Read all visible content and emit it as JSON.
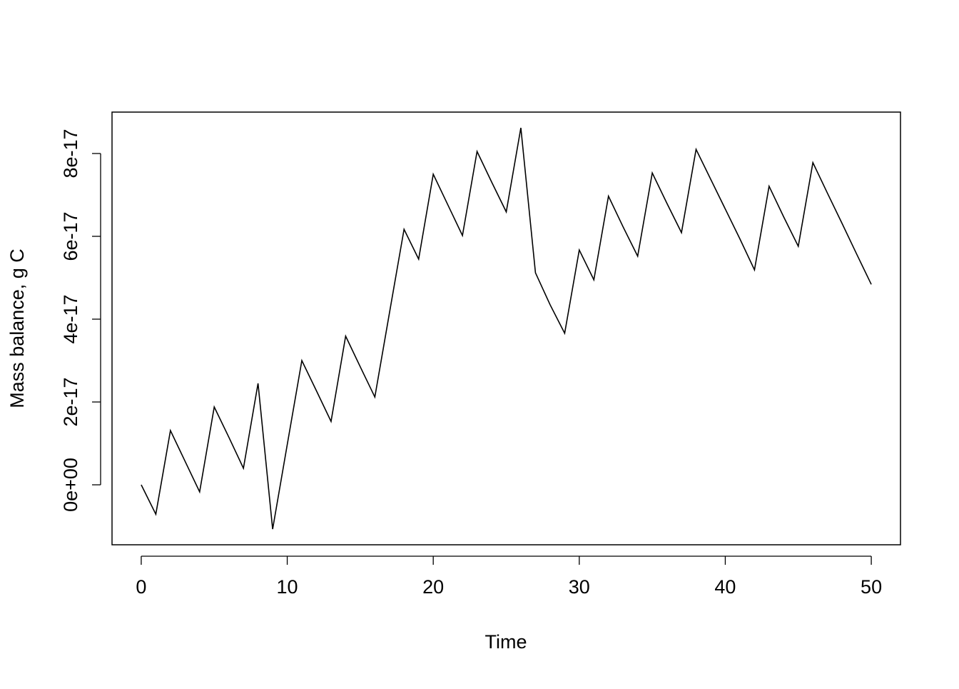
{
  "chart_data": {
    "type": "line",
    "x_label": "Time",
    "y_label": "Mass balance, g C",
    "x": [
      0,
      1,
      2,
      3,
      4,
      5,
      6,
      7,
      8,
      9,
      10,
      11,
      12,
      13,
      14,
      15,
      16,
      17,
      18,
      19,
      20,
      21,
      22,
      23,
      24,
      25,
      26,
      27,
      28,
      29,
      30,
      31,
      32,
      33,
      34,
      35,
      36,
      37,
      38,
      39,
      40,
      41,
      42,
      43,
      44,
      45,
      46,
      47,
      48,
      49,
      50
    ],
    "series": [
      {
        "color": "#000000",
        "values": [
          0,
          -7.1e-18,
          1.31e-17,
          5.7e-18,
          -1.7e-18,
          1.88e-17,
          1.15e-17,
          4e-18,
          2.45e-17,
          -1.07e-17,
          9.7e-18,
          3e-17,
          2.27e-17,
          1.53e-17,
          3.59e-17,
          2.85e-17,
          2.12e-17,
          4.15e-17,
          6.17e-17,
          5.45e-17,
          7.5e-17,
          6.76e-17,
          6.02e-17,
          8.05e-17,
          7.31e-17,
          6.59e-17,
          8.62e-17,
          5.12e-17,
          4.35e-17,
          3.66e-17,
          5.67e-17,
          4.95e-17,
          6.97e-17,
          6.23e-17,
          5.52e-17,
          7.53e-17,
          6.8e-17,
          6.09e-17,
          8.1e-17,
          7.38e-17,
          6.66e-17,
          5.94e-17,
          5.19e-17,
          7.21e-17,
          6.47e-17,
          5.76e-17,
          7.78e-17,
          7.04e-17,
          6.31e-17,
          5.57e-17,
          4.84e-17
        ]
      }
    ],
    "xlim": [
      -2,
      52
    ],
    "ylim": [
      -1.448e-17,
      9e-17
    ],
    "xticks": [
      0,
      10,
      20,
      30,
      40,
      50
    ],
    "yticks": [
      {
        "value": 0,
        "label": "0e+00"
      },
      {
        "value": 2e-17,
        "label": "2e-17"
      },
      {
        "value": 4e-17,
        "label": "4e-17"
      },
      {
        "value": 6e-17,
        "label": "6e-17"
      },
      {
        "value": 8e-17,
        "label": "8e-17"
      }
    ]
  }
}
